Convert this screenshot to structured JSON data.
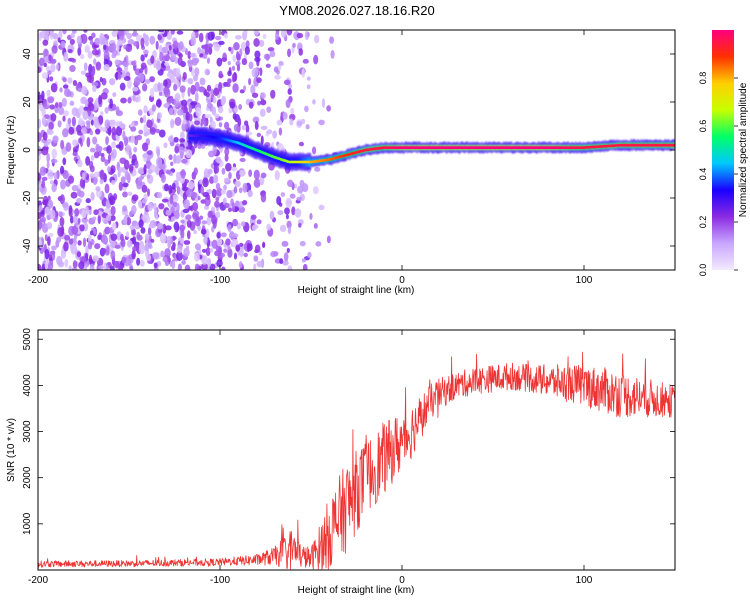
{
  "page_title": "YM08.2026.027.18.16.R20",
  "chart_data": [
    {
      "type": "heatmap",
      "title": "YM08.2026.027.18.16.R20",
      "xlabel": "Height of straight line (km)",
      "ylabel": "Frequency (Hz)",
      "xlim": [
        -200,
        150
      ],
      "ylim": [
        -50,
        50
      ],
      "xticks": [
        -200,
        -100,
        0,
        100
      ],
      "yticks": [
        -40,
        -20,
        0,
        20,
        40
      ],
      "colorbar": {
        "label": "Normalized spectral amplitude",
        "range": [
          0,
          1
        ],
        "ticks": [
          0.0,
          0.2,
          0.4,
          0.6,
          0.8
        ],
        "colormap": [
          "#f3eaff",
          "#c9a6ff",
          "#8a2be2",
          "#1a00ff",
          "#00c8ff",
          "#00ff66",
          "#c8ff00",
          "#ffd000",
          "#ff3000",
          "#ff0080"
        ]
      },
      "noise_region": {
        "x_range": [
          -200,
          -58
        ],
        "y_range": [
          -50,
          50
        ],
        "amplitude": [
          0.05,
          0.25
        ]
      },
      "signal_ridge": {
        "x": [
          -117,
          -110,
          -100,
          -90,
          -80,
          -70,
          -62,
          -57,
          -50,
          -40,
          -30,
          -20,
          -10,
          0,
          20,
          50,
          80,
          100,
          120,
          150
        ],
        "freq_hz": [
          6,
          6,
          5,
          3,
          0,
          -3,
          -5,
          -5,
          -5,
          -4,
          -2,
          0,
          1,
          1,
          1,
          1,
          1,
          1,
          2,
          2
        ],
        "amplitude": [
          0.25,
          0.3,
          0.35,
          0.45,
          0.55,
          0.6,
          0.65,
          0.7,
          0.8,
          0.85,
          0.9,
          0.95,
          0.95,
          1.0,
          1.0,
          1.0,
          1.0,
          0.95,
          0.95,
          0.95
        ]
      }
    },
    {
      "type": "line",
      "xlabel": "Height of straight line (km)",
      "ylabel": "SNR (10 * v/v)",
      "xlim": [
        -200,
        150
      ],
      "ylim": [
        0,
        5200
      ],
      "xticks": [
        -200,
        -100,
        0,
        100
      ],
      "yticks": [
        1000,
        2000,
        3000,
        4000,
        5000
      ],
      "series": [
        {
          "name": "SNR",
          "color": "#ee3333",
          "envelope": {
            "x": [
              -200,
              -150,
              -100,
              -80,
              -70,
              -60,
              -55,
              -50,
              -45,
              -40,
              -35,
              -30,
              -25,
              -20,
              -15,
              -10,
              -5,
              0,
              5,
              10,
              15,
              20,
              30,
              40,
              50,
              60,
              70,
              80,
              90,
              100,
              110,
              120,
              130,
              140,
              150
            ],
            "mean": [
              130,
              140,
              170,
              220,
              300,
              450,
              300,
              250,
              500,
              800,
              1100,
              1400,
              1700,
              2000,
              2200,
              2400,
              2600,
              2800,
              3000,
              3300,
              3600,
              3800,
              4000,
              4100,
              4150,
              4200,
              4150,
              4100,
              4050,
              4000,
              3900,
              3800,
              3750,
              3700,
              3650
            ],
            "spread": [
              70,
              70,
              80,
              120,
              200,
              500,
              250,
              250,
              500,
              800,
              900,
              1000,
              900,
              800,
              800,
              800,
              700,
              700,
              600,
              500,
              400,
              350,
              300,
              300,
              300,
              300,
              300,
              350,
              400,
              450,
              500,
              500,
              450,
              400,
              350
            ]
          }
        }
      ]
    }
  ]
}
